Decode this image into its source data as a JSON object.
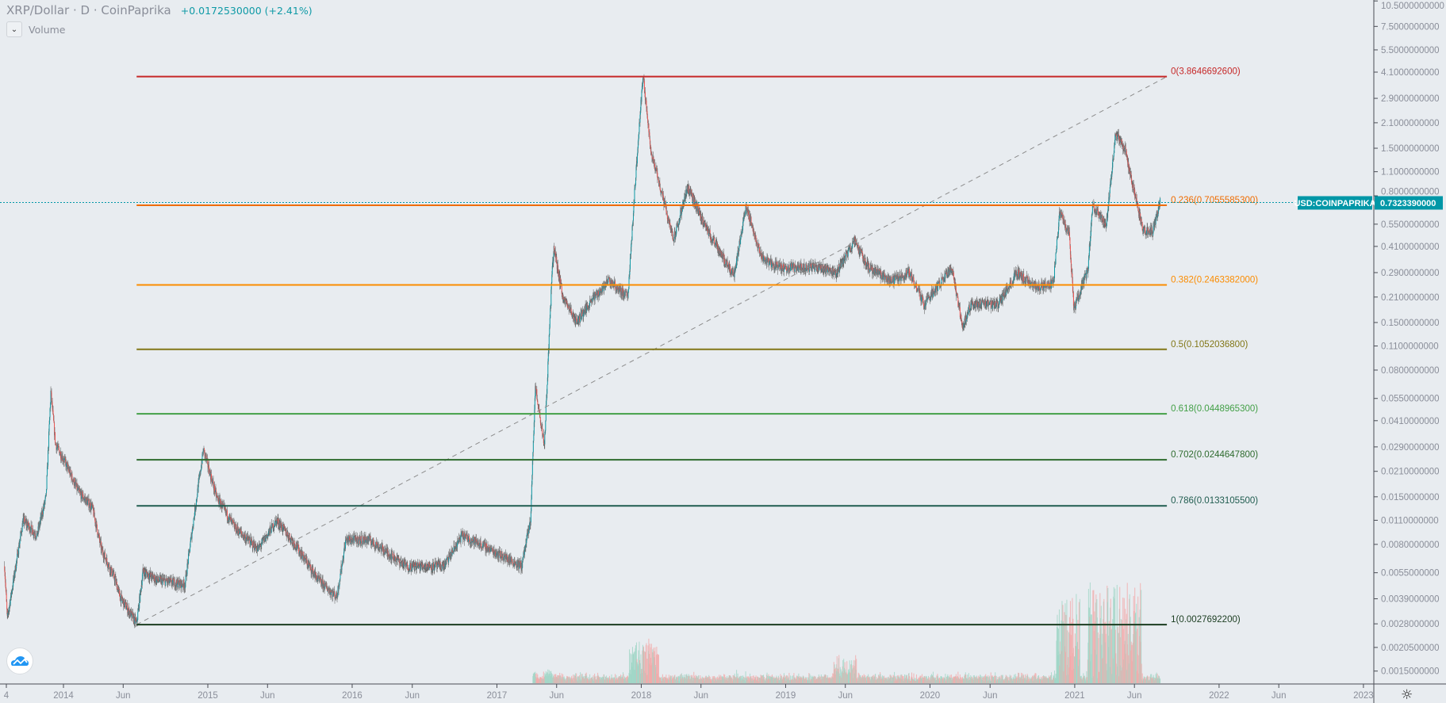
{
  "header": {
    "title": "XRP/Dollar · D · CoinPaprika",
    "change": "+0.0172530000 (+2.41%)",
    "volume_label": "Volume"
  },
  "price_tag": {
    "symbol": "USD:COINPAPRIKA",
    "value": "0.7323390000"
  },
  "colors": {
    "background": "#e8ecf0",
    "up": "#0f9aa6",
    "down": "#ef5350",
    "wick": "#6b6b6b",
    "accent": "#0097a7"
  },
  "chart_data": {
    "type": "candlestick",
    "title": "XRP/Dollar · D · CoinPaprika",
    "y_scale": "log",
    "ylim": [
      0.0012,
      10.5
    ],
    "y_ticks": [
      "10.5000000000",
      "7.5000000000",
      "5.5000000000",
      "4.1000000000",
      "2.9000000000",
      "2.1000000000",
      "1.5000000000",
      "1.1000000000",
      "0.8000000000",
      "0.5500000000",
      "0.4100000000",
      "0.2900000000",
      "0.2100000000",
      "0.1500000000",
      "0.1100000000",
      "0.0800000000",
      "0.0550000000",
      "0.0410000000",
      "0.0290000000",
      "0.0210000000",
      "0.0150000000",
      "0.0110000000",
      "0.0080000000",
      "0.0055000000",
      "0.0039000000",
      "0.0028000000",
      "0.0020500000",
      "0.0015000000"
    ],
    "x_ticks": [
      {
        "date": "2013-09-01",
        "label": "4"
      },
      {
        "date": "2014-01-01",
        "label": "2014"
      },
      {
        "date": "2014-06-01",
        "label": "Jun"
      },
      {
        "date": "2015-01-01",
        "label": "2015"
      },
      {
        "date": "2015-06-01",
        "label": "Jun"
      },
      {
        "date": "2016-01-01",
        "label": "2016"
      },
      {
        "date": "2016-06-01",
        "label": "Jun"
      },
      {
        "date": "2017-01-01",
        "label": "2017"
      },
      {
        "date": "2017-06-01",
        "label": "Jun"
      },
      {
        "date": "2018-01-01",
        "label": "2018"
      },
      {
        "date": "2018-06-01",
        "label": "Jun"
      },
      {
        "date": "2019-01-01",
        "label": "2019"
      },
      {
        "date": "2019-06-01",
        "label": "Jun"
      },
      {
        "date": "2020-01-01",
        "label": "2020"
      },
      {
        "date": "2020-06-01",
        "label": "Jun"
      },
      {
        "date": "2021-01-01",
        "label": "2021"
      },
      {
        "date": "2021-06-01",
        "label": "Jun"
      },
      {
        "date": "2022-01-01",
        "label": "2022"
      },
      {
        "date": "2022-06-01",
        "label": "Jun"
      },
      {
        "date": "2023-01-01",
        "label": "2023"
      }
    ],
    "price_path": [
      [
        "2013-08-05",
        0.006
      ],
      [
        "2013-08-12",
        0.003
      ],
      [
        "2013-09-21",
        0.011
      ],
      [
        "2013-10-26",
        0.009
      ],
      [
        "2013-11-18",
        0.015
      ],
      [
        "2013-11-30",
        0.06
      ],
      [
        "2013-12-12",
        0.03
      ],
      [
        "2014-01-04",
        0.024
      ],
      [
        "2014-02-08",
        0.016
      ],
      [
        "2014-03-15",
        0.013
      ],
      [
        "2014-04-07",
        0.0075
      ],
      [
        "2014-05-12",
        0.005
      ],
      [
        "2014-05-24",
        0.004
      ],
      [
        "2014-07-05",
        0.0028
      ],
      [
        "2014-07-21",
        0.0056
      ],
      [
        "2014-08-26",
        0.005
      ],
      [
        "2014-11-04",
        0.0047
      ],
      [
        "2014-11-28",
        0.012
      ],
      [
        "2014-12-21",
        0.028
      ],
      [
        "2015-01-23",
        0.015
      ],
      [
        "2015-03-10",
        0.01
      ],
      [
        "2015-05-08",
        0.0075
      ],
      [
        "2015-06-24",
        0.011
      ],
      [
        "2015-08-10",
        0.008
      ],
      [
        "2015-10-07",
        0.005
      ],
      [
        "2015-11-23",
        0.004
      ],
      [
        "2015-12-16",
        0.0085
      ],
      [
        "2016-02-13",
        0.0085
      ],
      [
        "2016-05-17",
        0.006
      ],
      [
        "2016-08-20",
        0.006
      ],
      [
        "2016-10-05",
        0.009
      ],
      [
        "2016-11-21",
        0.008
      ],
      [
        "2017-03-04",
        0.006
      ],
      [
        "2017-03-27",
        0.011
      ],
      [
        "2017-04-08",
        0.065
      ],
      [
        "2017-05-01",
        0.03
      ],
      [
        "2017-05-20",
        0.28
      ],
      [
        "2017-05-25",
        0.4
      ],
      [
        "2017-06-17",
        0.21
      ],
      [
        "2017-07-22",
        0.15
      ],
      [
        "2017-08-26",
        0.2
      ],
      [
        "2017-10-12",
        0.26
      ],
      [
        "2017-11-28",
        0.21
      ],
      [
        "2017-12-16",
        0.9
      ],
      [
        "2018-01-01",
        2.9
      ],
      [
        "2018-01-06",
        3.86
      ],
      [
        "2018-01-24",
        1.5
      ],
      [
        "2018-02-17",
        0.9
      ],
      [
        "2018-03-24",
        0.45
      ],
      [
        "2018-04-28",
        0.9
      ],
      [
        "2018-06-02",
        0.6
      ],
      [
        "2018-07-07",
        0.42
      ],
      [
        "2018-08-24",
        0.28
      ],
      [
        "2018-09-23",
        0.7
      ],
      [
        "2018-11-02",
        0.35
      ],
      [
        "2018-12-18",
        0.31
      ],
      [
        "2019-04-03",
        0.31
      ],
      [
        "2019-05-08",
        0.29
      ],
      [
        "2019-06-24",
        0.44
      ],
      [
        "2019-07-29",
        0.31
      ],
      [
        "2019-09-26",
        0.26
      ],
      [
        "2019-11-11",
        0.29
      ],
      [
        "2019-12-17",
        0.19
      ],
      [
        "2020-02-25",
        0.31
      ],
      [
        "2020-03-24",
        0.14
      ],
      [
        "2020-04-12",
        0.19
      ],
      [
        "2020-06-21",
        0.19
      ],
      [
        "2020-08-07",
        0.29
      ],
      [
        "2020-09-23",
        0.24
      ],
      [
        "2020-11-08",
        0.25
      ],
      [
        "2020-11-24",
        0.65
      ],
      [
        "2020-12-18",
        0.48
      ],
      [
        "2020-12-30",
        0.18
      ],
      [
        "2021-02-03",
        0.3
      ],
      [
        "2021-02-15",
        0.7
      ],
      [
        "2021-03-22",
        0.55
      ],
      [
        "2021-04-14",
        1.8
      ],
      [
        "2021-05-08",
        1.5
      ],
      [
        "2021-05-31",
        0.85
      ],
      [
        "2021-06-23",
        0.5
      ],
      [
        "2021-07-17",
        0.5
      ],
      [
        "2021-08-05",
        0.732339
      ]
    ],
    "last_price": 0.732339,
    "fibonacci": {
      "start": {
        "date": "2014-07-05",
        "price": 0.00276922
      },
      "end": {
        "date": "2018-01-06",
        "price": 3.86466926
      },
      "extends_to": "2021-08-22",
      "levels": [
        {
          "level": "0",
          "price": 3.86466926,
          "label": "0(3.8646692600)",
          "color": "#c62828"
        },
        {
          "level": "0.236",
          "price": 0.70555853,
          "label": "0.236(0.7055585300)",
          "color": "#ef6c00"
        },
        {
          "level": "0.382",
          "price": 0.2463382,
          "label": "0.382(0.2463382000)",
          "color": "#fb8c00"
        },
        {
          "level": "0.5",
          "price": 0.10520368,
          "label": "0.5(0.1052036800)",
          "color": "#827717"
        },
        {
          "level": "0.618",
          "price": 0.04489653,
          "label": "0.618(0.0448965300)",
          "color": "#43a047"
        },
        {
          "level": "0.702",
          "price": 0.02446478,
          "label": "0.702(0.0244647800)",
          "color": "#2e6b2e"
        },
        {
          "level": "0.786",
          "price": 0.01331055,
          "label": "0.786(0.0133105500)",
          "color": "#1f5c4f"
        },
        {
          "level": "1",
          "price": 0.00276922,
          "label": "1(0.0027692200)",
          "color": "#1b3d20"
        }
      ]
    },
    "grid": false,
    "legend": "top-left"
  }
}
